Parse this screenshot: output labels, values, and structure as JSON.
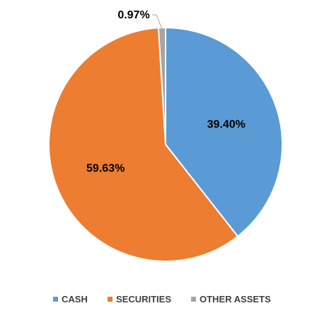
{
  "chart_data": {
    "type": "pie",
    "title": "",
    "legend_position": "bottom",
    "slices": [
      {
        "name": "CASH",
        "value": 39.4,
        "label": "39.40%",
        "color": "#5b9bd5"
      },
      {
        "name": "SECURITIES",
        "value": 59.63,
        "label": "59.63%",
        "color": "#ed7d31"
      },
      {
        "name": "OTHER ASSETS",
        "value": 0.97,
        "label": "0.97%",
        "color": "#a5a5a5"
      }
    ]
  }
}
